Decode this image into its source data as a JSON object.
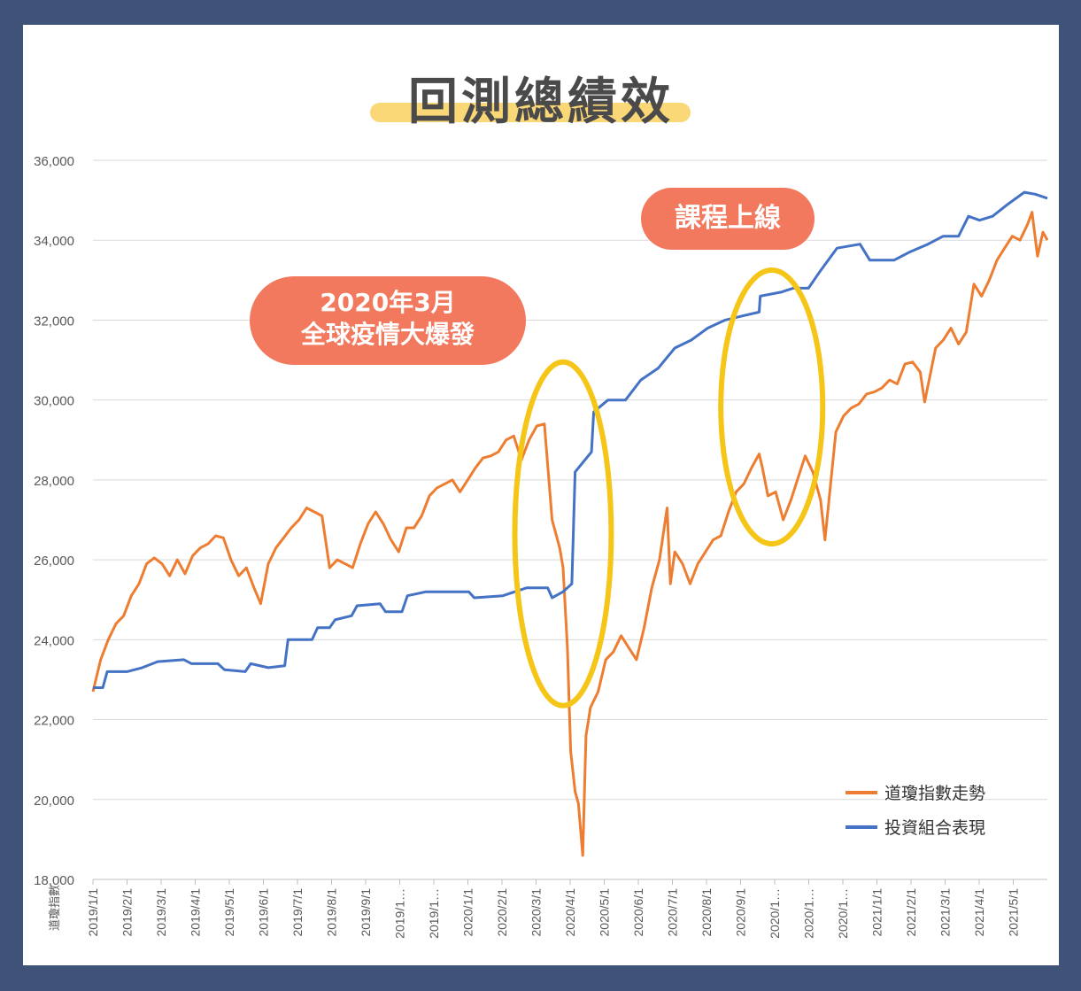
{
  "title": "回測總績效",
  "annotations": {
    "covid_line1": "2020年3月",
    "covid_line2": "全球疫情大爆發",
    "course": "課程上線"
  },
  "colors": {
    "background": "#3f5378",
    "dow": "#ed7d31",
    "portfolio": "#4472c4",
    "highlight_ring": "#f5c518",
    "bubble": "#f2785e"
  },
  "chart_data": {
    "type": "line",
    "ylim": [
      18000,
      36000
    ],
    "ylabel": "道瓊指數",
    "y_ticks": [
      "18,000",
      "20,000",
      "22,000",
      "24,000",
      "26,000",
      "28,000",
      "30,000",
      "32,000",
      "34,000",
      "36,000"
    ],
    "x_ticks": [
      "2019/1/1",
      "2019/2/1",
      "2019/3/1",
      "2019/4/1",
      "2019/5/1",
      "2019/6/1",
      "2019/7/1",
      "2019/8/1",
      "2019/9/1",
      "2019/1…",
      "2019/1…",
      "2020/1/1",
      "2020/2/1",
      "2020/3/1",
      "2020/4/1",
      "2020/5/1",
      "2020/6/1",
      "2020/7/1",
      "2020/8/1",
      "2020/9/1",
      "2020/1…",
      "2020/1…",
      "2020/1…",
      "2021/1/1",
      "2021/2/1",
      "2021/3/1",
      "2021/4/1",
      "2021/5/1"
    ],
    "x_range": [
      "2019/1/1",
      "2021/5/21"
    ],
    "legend_position": "bottom-right",
    "grid": true,
    "series": [
      {
        "name": "道瓊指數走勢",
        "color": "#ed7d31",
        "points": [
          [
            "2019/1/1",
            22700
          ],
          [
            "2019/1/8",
            23500
          ],
          [
            "2019/1/15",
            24000
          ],
          [
            "2019/1/22",
            24400
          ],
          [
            "2019/1/29",
            24600
          ],
          [
            "2019/2/5",
            25100
          ],
          [
            "2019/2/12",
            25400
          ],
          [
            "2019/2/19",
            25900
          ],
          [
            "2019/2/26",
            26050
          ],
          [
            "2019/3/5",
            25900
          ],
          [
            "2019/3/12",
            25600
          ],
          [
            "2019/3/19",
            26000
          ],
          [
            "2019/3/26",
            25650
          ],
          [
            "2019/4/2",
            26100
          ],
          [
            "2019/4/9",
            26300
          ],
          [
            "2019/4/16",
            26400
          ],
          [
            "2019/4/23",
            26600
          ],
          [
            "2019/4/30",
            26550
          ],
          [
            "2019/5/7",
            26000
          ],
          [
            "2019/5/14",
            25600
          ],
          [
            "2019/5/21",
            25800
          ],
          [
            "2019/5/28",
            25300
          ],
          [
            "2019/6/3",
            24900
          ],
          [
            "2019/6/10",
            25900
          ],
          [
            "2019/6/17",
            26300
          ],
          [
            "2019/6/24",
            26550
          ],
          [
            "2019/7/1",
            26800
          ],
          [
            "2019/7/8",
            27000
          ],
          [
            "2019/7/15",
            27300
          ],
          [
            "2019/7/22",
            27200
          ],
          [
            "2019/7/29",
            27100
          ],
          [
            "2019/8/5",
            25800
          ],
          [
            "2019/8/12",
            26000
          ],
          [
            "2019/8/19",
            25900
          ],
          [
            "2019/8/26",
            25800
          ],
          [
            "2019/9/2",
            26400
          ],
          [
            "2019/9/9",
            26900
          ],
          [
            "2019/9/16",
            27200
          ],
          [
            "2019/9/23",
            26900
          ],
          [
            "2019/9/30",
            26500
          ],
          [
            "2019/10/7",
            26200
          ],
          [
            "2019/10/14",
            26800
          ],
          [
            "2019/10/21",
            26800
          ],
          [
            "2019/10/28",
            27100
          ],
          [
            "2019/11/4",
            27600
          ],
          [
            "2019/11/11",
            27800
          ],
          [
            "2019/11/18",
            27900
          ],
          [
            "2019/11/25",
            28000
          ],
          [
            "2019/12/2",
            27700
          ],
          [
            "2019/12/9",
            28000
          ],
          [
            "2019/12/16",
            28300
          ],
          [
            "2019/12/23",
            28550
          ],
          [
            "2019/12/30",
            28600
          ],
          [
            "2020/1/6",
            28700
          ],
          [
            "2020/1/13",
            29000
          ],
          [
            "2020/1/20",
            29100
          ],
          [
            "2020/1/27",
            28500
          ],
          [
            "2020/2/3",
            29000
          ],
          [
            "2020/2/10",
            29350
          ],
          [
            "2020/2/17",
            29400
          ],
          [
            "2020/2/24",
            27000
          ],
          [
            "2020/3/2",
            26300
          ],
          [
            "2020/3/5",
            25800
          ],
          [
            "2020/3/9",
            23800
          ],
          [
            "2020/3/12",
            21200
          ],
          [
            "2020/3/16",
            20200
          ],
          [
            "2020/3/19",
            19900
          ],
          [
            "2020/3/23",
            18600
          ],
          [
            "2020/3/26",
            21600
          ],
          [
            "2020/3/30",
            22300
          ],
          [
            "2020/4/6",
            22700
          ],
          [
            "2020/4/13",
            23500
          ],
          [
            "2020/4/20",
            23700
          ],
          [
            "2020/4/27",
            24100
          ],
          [
            "2020/5/4",
            23800
          ],
          [
            "2020/5/11",
            23500
          ],
          [
            "2020/5/18",
            24300
          ],
          [
            "2020/5/25",
            25300
          ],
          [
            "2020/6/1",
            26000
          ],
          [
            "2020/6/8",
            27300
          ],
          [
            "2020/6/11",
            25400
          ],
          [
            "2020/6/15",
            26200
          ],
          [
            "2020/6/22",
            25900
          ],
          [
            "2020/6/29",
            25400
          ],
          [
            "2020/7/6",
            25900
          ],
          [
            "2020/7/13",
            26200
          ],
          [
            "2020/7/20",
            26500
          ],
          [
            "2020/7/27",
            26600
          ],
          [
            "2020/8/3",
            27200
          ],
          [
            "2020/8/10",
            27700
          ],
          [
            "2020/8/17",
            27900
          ],
          [
            "2020/8/24",
            28300
          ],
          [
            "2020/8/31",
            28650
          ],
          [
            "2020/9/3",
            28300
          ],
          [
            "2020/9/8",
            27600
          ],
          [
            "2020/9/15",
            27700
          ],
          [
            "2020/9/22",
            27000
          ],
          [
            "2020/9/29",
            27500
          ],
          [
            "2020/10/6",
            28100
          ],
          [
            "2020/10/12",
            28600
          ],
          [
            "2020/10/19",
            28200
          ],
          [
            "2020/10/26",
            27500
          ],
          [
            "2020/10/30",
            26500
          ],
          [
            "2020/11/9",
            29200
          ],
          [
            "2020/11/16",
            29600
          ],
          [
            "2020/11/23",
            29800
          ],
          [
            "2020/11/30",
            29900
          ],
          [
            "2020/12/7",
            30150
          ],
          [
            "2020/12/14",
            30200
          ],
          [
            "2020/12/21",
            30300
          ],
          [
            "2020/12/28",
            30500
          ],
          [
            "2021/1/4",
            30400
          ],
          [
            "2021/1/11",
            30900
          ],
          [
            "2021/1/18",
            30950
          ],
          [
            "2021/1/25",
            30700
          ],
          [
            "2021/1/29",
            29950
          ],
          [
            "2021/2/8",
            31300
          ],
          [
            "2021/2/15",
            31500
          ],
          [
            "2021/2/22",
            31800
          ],
          [
            "2021/3/1",
            31400
          ],
          [
            "2021/3/8",
            31700
          ],
          [
            "2021/3/15",
            32900
          ],
          [
            "2021/3/22",
            32600
          ],
          [
            "2021/3/29",
            33000
          ],
          [
            "2021/4/5",
            33500
          ],
          [
            "2021/4/12",
            33800
          ],
          [
            "2021/4/19",
            34100
          ],
          [
            "2021/4/26",
            34000
          ],
          [
            "2021/5/3",
            34400
          ],
          [
            "2021/5/7",
            34700
          ],
          [
            "2021/5/12",
            33600
          ],
          [
            "2021/5/17",
            34200
          ],
          [
            "2021/5/21",
            34000
          ]
        ]
      },
      {
        "name": "投資組合表現",
        "color": "#4472c4",
        "points": [
          [
            "2019/1/1",
            22800
          ],
          [
            "2019/1/10",
            22800
          ],
          [
            "2019/1/14",
            23200
          ],
          [
            "2019/2/1",
            23200
          ],
          [
            "2019/2/15",
            23300
          ],
          [
            "2019/3/1",
            23450
          ],
          [
            "2019/3/25",
            23500
          ],
          [
            "2019/4/1",
            23400
          ],
          [
            "2019/4/25",
            23400
          ],
          [
            "2019/5/1",
            23250
          ],
          [
            "2019/5/20",
            23200
          ],
          [
            "2019/5/25",
            23400
          ],
          [
            "2019/6/10",
            23300
          ],
          [
            "2019/6/25",
            23350
          ],
          [
            "2019/6/28",
            24000
          ],
          [
            "2019/7/20",
            24000
          ],
          [
            "2019/7/25",
            24300
          ],
          [
            "2019/8/5",
            24300
          ],
          [
            "2019/8/10",
            24500
          ],
          [
            "2019/8/25",
            24600
          ],
          [
            "2019/8/30",
            24850
          ],
          [
            "2019/9/20",
            24900
          ],
          [
            "2019/9/25",
            24700
          ],
          [
            "2019/10/10",
            24700
          ],
          [
            "2019/10/15",
            25100
          ],
          [
            "2019/11/1",
            25200
          ],
          [
            "2019/12/10",
            25200
          ],
          [
            "2019/12/15",
            25050
          ],
          [
            "2020/1/10",
            25100
          ],
          [
            "2020/2/1",
            25300
          ],
          [
            "2020/2/20",
            25300
          ],
          [
            "2020/2/24",
            25050
          ],
          [
            "2020/3/5",
            25200
          ],
          [
            "2020/3/13",
            25400
          ],
          [
            "2020/3/16",
            28200
          ],
          [
            "2020/3/25",
            28500
          ],
          [
            "2020/3/31",
            28700
          ],
          [
            "2020/4/2",
            29700
          ],
          [
            "2020/4/15",
            30000
          ],
          [
            "2020/5/1",
            30000
          ],
          [
            "2020/5/15",
            30500
          ],
          [
            "2020/5/31",
            30800
          ],
          [
            "2020/6/15",
            31300
          ],
          [
            "2020/6/30",
            31500
          ],
          [
            "2020/7/15",
            31800
          ],
          [
            "2020/7/31",
            32000
          ],
          [
            "2020/8/15",
            32100
          ],
          [
            "2020/8/31",
            32200
          ],
          [
            "2020/9/1",
            32600
          ],
          [
            "2020/9/20",
            32700
          ],
          [
            "2020/10/1",
            32800
          ],
          [
            "2020/10/15",
            32800
          ],
          [
            "2020/10/25",
            33200
          ],
          [
            "2020/11/10",
            33800
          ],
          [
            "2020/12/1",
            33900
          ],
          [
            "2020/12/10",
            33500
          ],
          [
            "2021/1/1",
            33500
          ],
          [
            "2021/1/15",
            33700
          ],
          [
            "2021/2/1",
            33900
          ],
          [
            "2021/2/15",
            34100
          ],
          [
            "2021/3/1",
            34100
          ],
          [
            "2021/3/10",
            34600
          ],
          [
            "2021/3/20",
            34500
          ],
          [
            "2021/4/1",
            34600
          ],
          [
            "2021/4/15",
            34900
          ],
          [
            "2021/4/30",
            35200
          ],
          [
            "2021/5/10",
            35150
          ],
          [
            "2021/5/21",
            35050
          ]
        ]
      }
    ]
  }
}
